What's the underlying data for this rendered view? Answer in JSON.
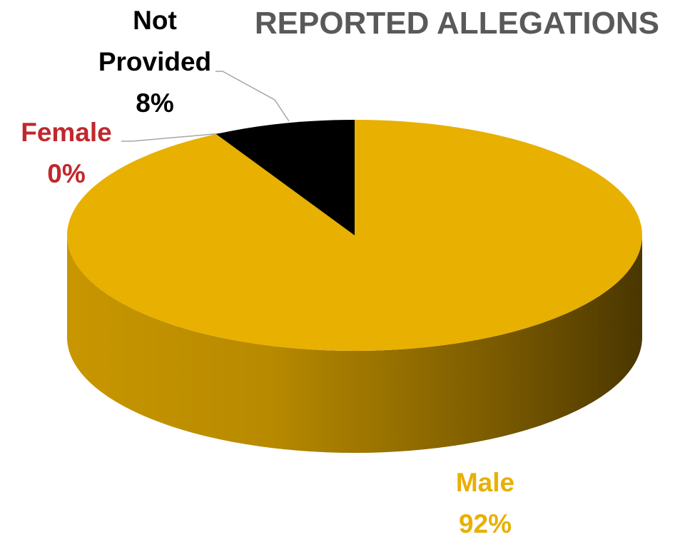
{
  "chart_data": {
    "type": "pie",
    "title": "REPORTED ALLEGATIONS",
    "categories": [
      "Male",
      "Female",
      "Not Provided"
    ],
    "values": [
      92,
      0,
      8
    ],
    "value_labels": [
      "92%",
      "0%",
      "8%"
    ],
    "colors": [
      "#e8b000",
      "#c0282d",
      "#000000"
    ]
  }
}
